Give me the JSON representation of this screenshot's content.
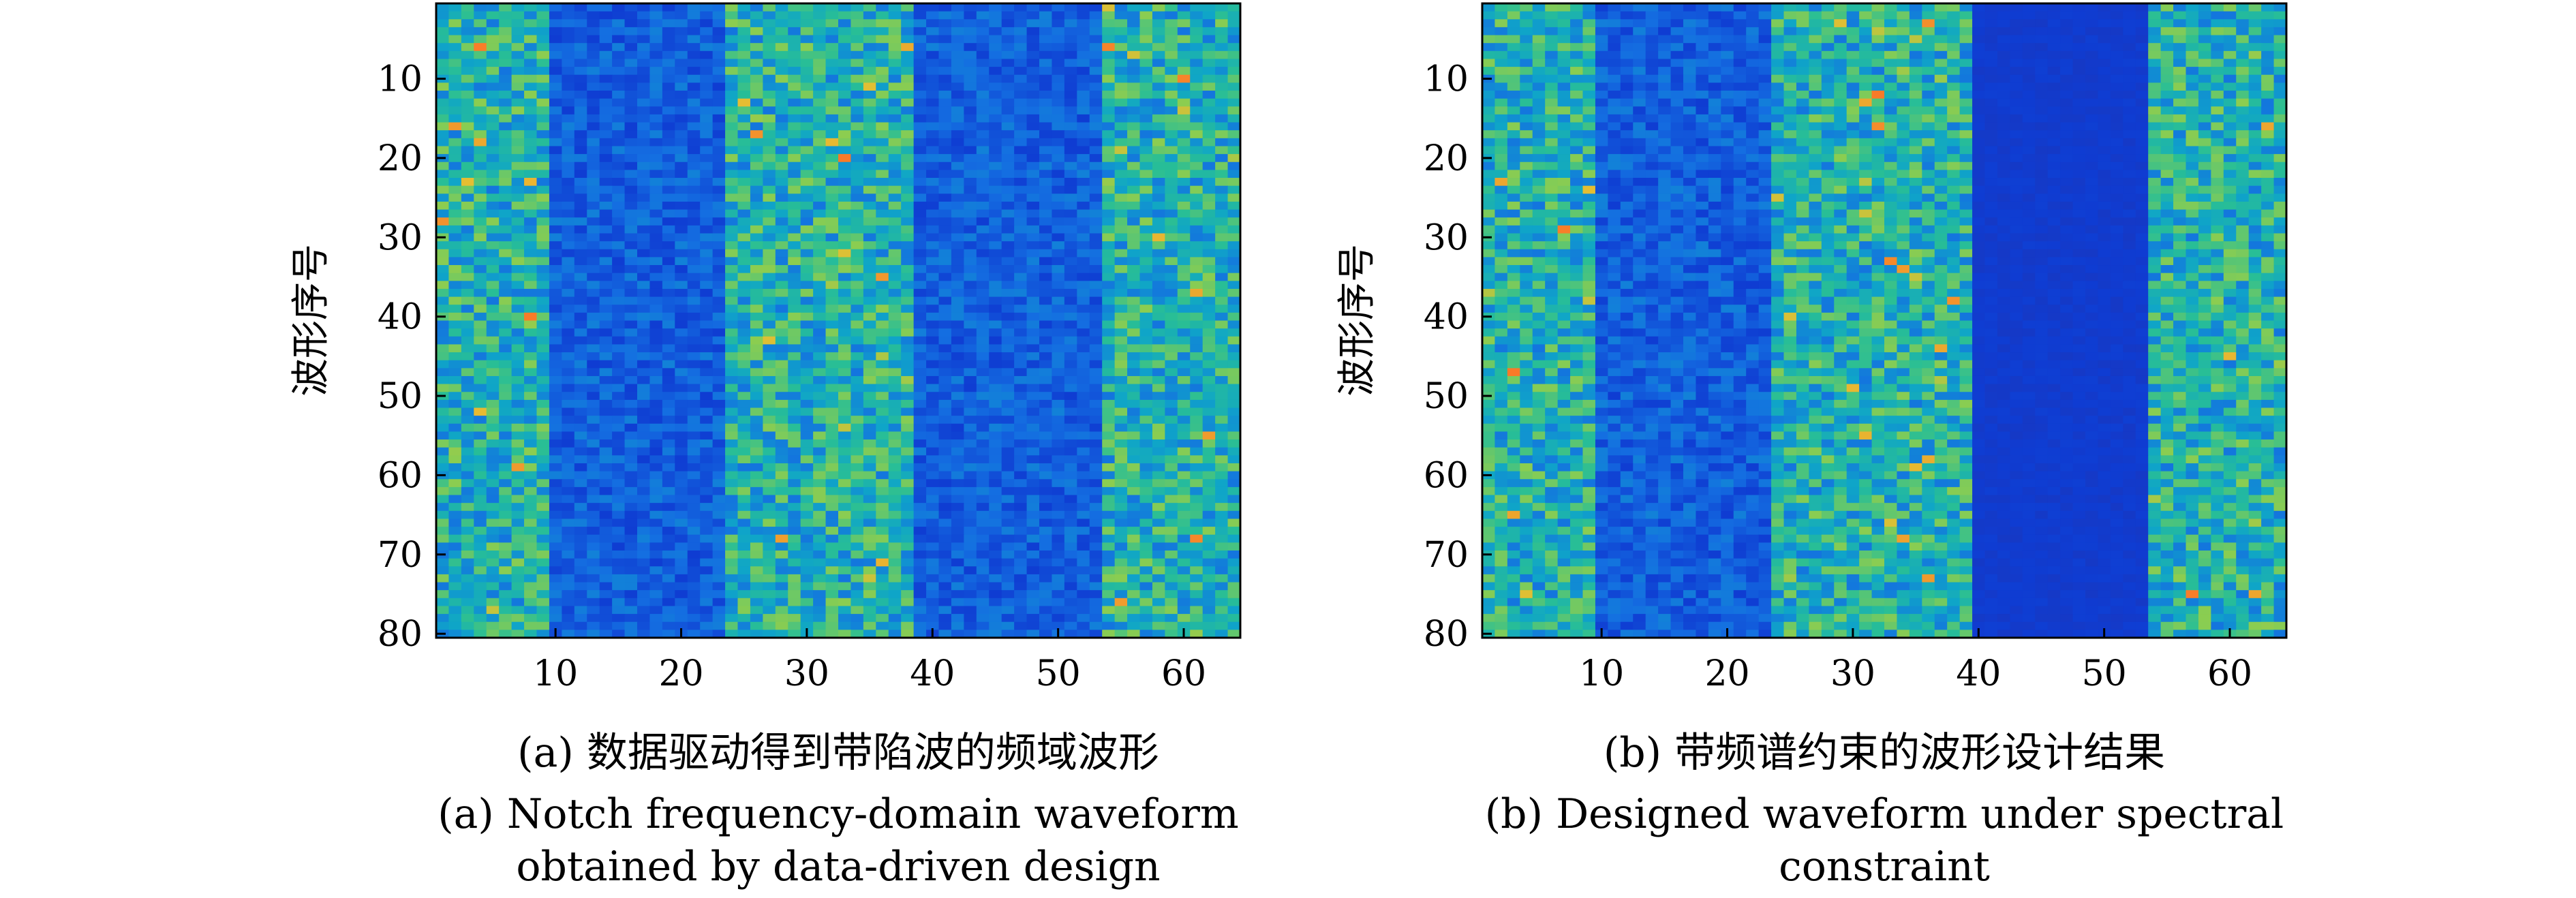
{
  "chart_data": [
    {
      "type": "heatmap",
      "id": "a",
      "ylabel": "波形序号",
      "xlabel": "",
      "title": "",
      "caption_zh": "(a) 数据驱动得到带陷波的频域波形",
      "caption_en": [
        "(a) Notch frequency-domain waveform",
        "obtained by data-driven design"
      ],
      "x_range": [
        1,
        64
      ],
      "y_range": [
        1,
        80
      ],
      "xticks": [
        10,
        20,
        30,
        40,
        50,
        60
      ],
      "yticks": [
        10,
        20,
        30,
        40,
        50,
        60,
        70,
        80
      ],
      "y_reversed": true,
      "colormap": "parula-like",
      "bands": [
        {
          "x_range": [
            1,
            9
          ],
          "level": "high"
        },
        {
          "x_range": [
            10,
            23
          ],
          "level": "low"
        },
        {
          "x_range": [
            24,
            38
          ],
          "level": "high"
        },
        {
          "x_range": [
            39,
            53
          ],
          "level": "low"
        },
        {
          "x_range": [
            54,
            64
          ],
          "level": "high"
        }
      ]
    },
    {
      "type": "heatmap",
      "id": "b",
      "ylabel": "波形序号",
      "xlabel": "",
      "title": "",
      "caption_zh": "(b) 带频谱约束的波形设计结果",
      "caption_en": [
        "(b) Designed waveform under spectral",
        "constraint"
      ],
      "x_range": [
        1,
        64
      ],
      "y_range": [
        1,
        80
      ],
      "xticks": [
        10,
        20,
        30,
        40,
        50,
        60
      ],
      "yticks": [
        10,
        20,
        30,
        40,
        50,
        60,
        70,
        80
      ],
      "y_reversed": true,
      "colormap": "parula-like",
      "bands": [
        {
          "x_range": [
            1,
            9
          ],
          "level": "high"
        },
        {
          "x_range": [
            10,
            23
          ],
          "level": "low"
        },
        {
          "x_range": [
            24,
            39
          ],
          "level": "high"
        },
        {
          "x_range": [
            40,
            53
          ],
          "level": "zero"
        },
        {
          "x_range": [
            54,
            64
          ],
          "level": "high"
        }
      ]
    }
  ]
}
